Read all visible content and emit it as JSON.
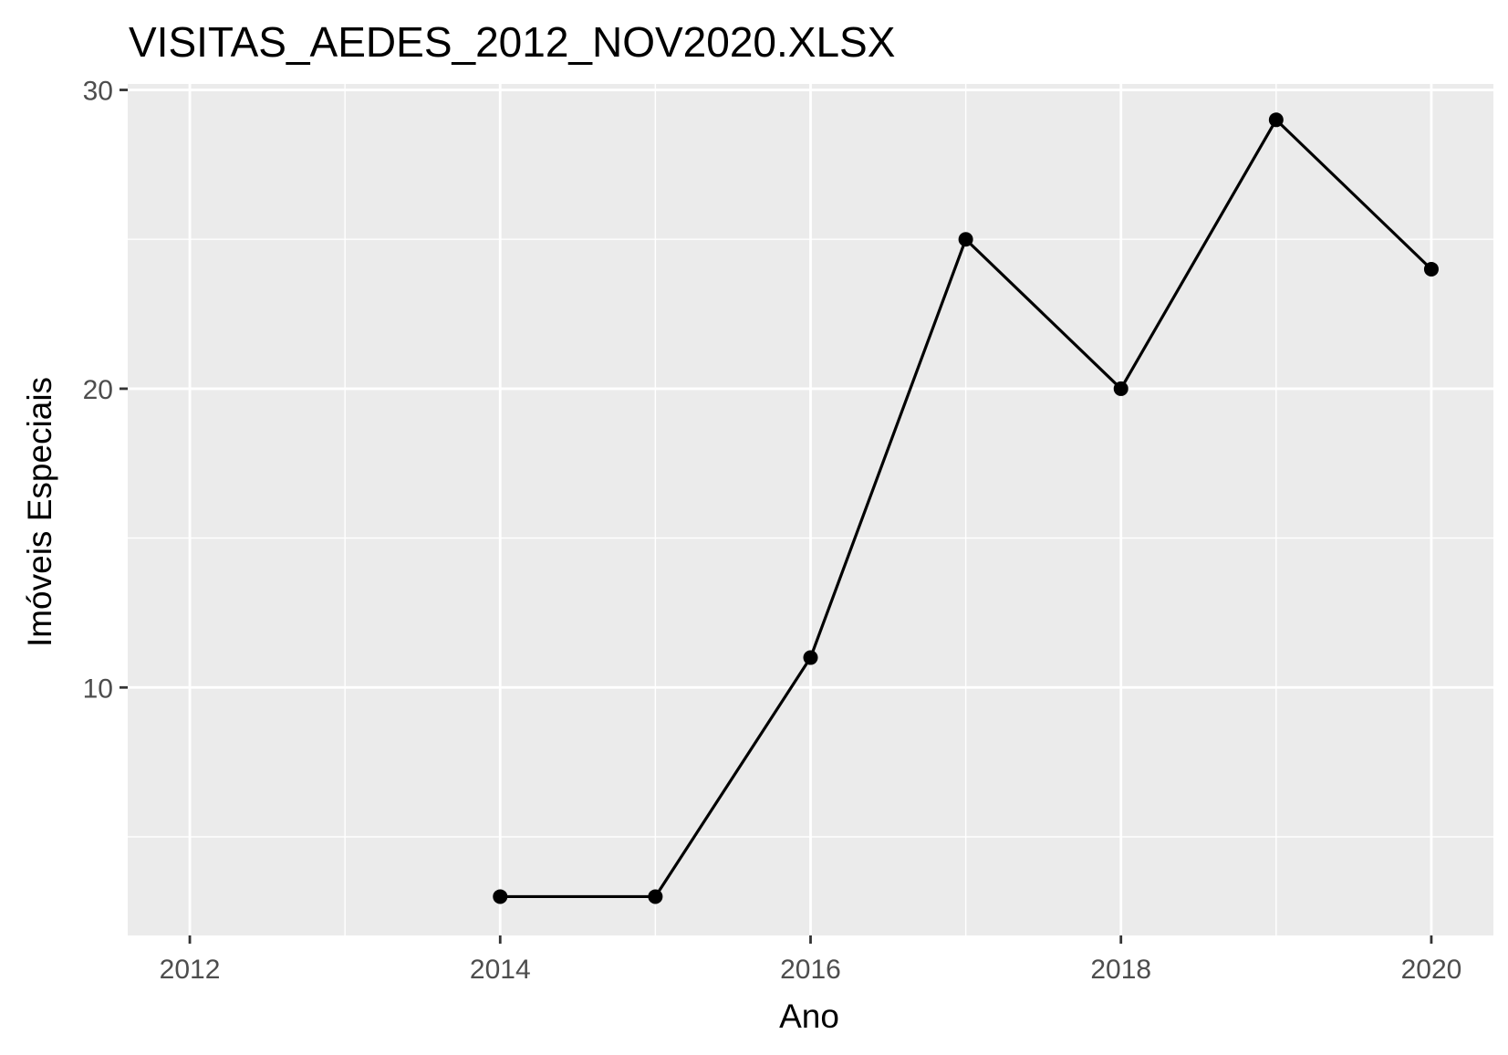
{
  "chart_data": {
    "type": "line",
    "title": "VISITAS_AEDES_2012_NOV2020.XLSX",
    "xlabel": "Ano",
    "ylabel": "Imóveis Especiais",
    "x": [
      2014,
      2015,
      2016,
      2017,
      2018,
      2019,
      2020
    ],
    "series": [
      {
        "values": [
          3,
          3,
          11,
          25,
          20,
          29,
          24
        ]
      }
    ],
    "xlim": [
      2011.6,
      2020.4
    ],
    "ylim": [
      1.7,
      30.2
    ],
    "x_ticks": [
      2012,
      2014,
      2016,
      2018,
      2020
    ],
    "x_tick_labels": [
      "2012",
      "2014",
      "2016",
      "2018",
      "2020"
    ],
    "x_minor_ticks": [
      2013,
      2015,
      2017,
      2019
    ],
    "y_ticks": [
      10,
      20,
      30
    ],
    "y_tick_labels": [
      "10",
      "20",
      "30"
    ],
    "y_minor_ticks": [
      5,
      15,
      25
    ],
    "grid": true,
    "markers": true,
    "colors": {
      "panel": "#ebebeb",
      "grid": "#ffffff",
      "line": "#000000",
      "tick_text": "#4d4d4d"
    }
  }
}
